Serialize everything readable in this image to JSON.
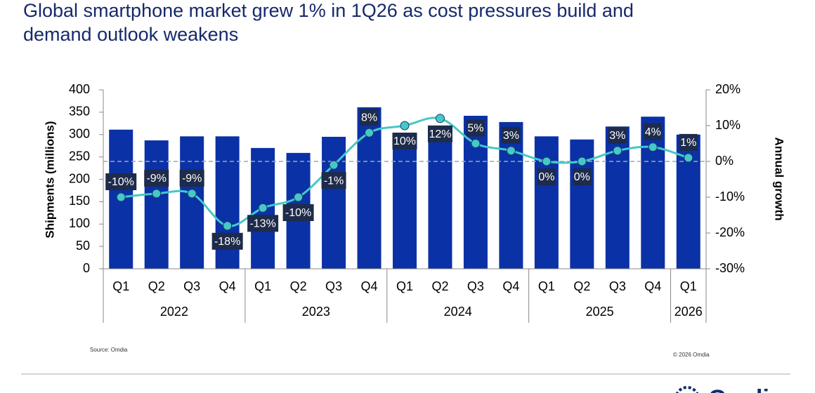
{
  "chart_data": {
    "type": "bar-line",
    "title_lines": [
      "Global smartphone market grew 1% in 1Q26 as cost pressures build and",
      "demand outlook weakens"
    ],
    "ylabel": "Shipments (millions)",
    "y2label": "Annual growth",
    "categories": [
      "Q1",
      "Q2",
      "Q3",
      "Q4",
      "Q1",
      "Q2",
      "Q3",
      "Q4",
      "Q1",
      "Q2",
      "Q3",
      "Q4",
      "Q1",
      "Q2",
      "Q3",
      "Q4",
      "Q1"
    ],
    "x_groups": [
      {
        "name": "2022",
        "count": 4
      },
      {
        "name": "2023",
        "count": 4
      },
      {
        "name": "2024",
        "count": 4
      },
      {
        "name": "2025",
        "count": 4
      },
      {
        "name": "2026",
        "count": 1
      }
    ],
    "series": [
      {
        "type": "bar",
        "color": "#0a31a6",
        "values": [
          311,
          287,
          296,
          296,
          270,
          259,
          295,
          361,
          296,
          296,
          342,
          328,
          296,
          289,
          318,
          340,
          300
        ]
      },
      {
        "type": "line",
        "axis": "y2",
        "color": "#45c8c6",
        "values": [
          -10,
          -9,
          -9,
          -18,
          -13,
          -10,
          -1,
          8,
          10,
          12,
          5,
          3,
          0,
          0,
          3,
          4,
          1
        ],
        "value_labels": [
          "-10%",
          "-9%",
          "-9%",
          "-18%",
          "-13%",
          "-10%",
          "-1%",
          "8%",
          "10%",
          "12%",
          "5%",
          "3%",
          "0%",
          "0%",
          "3%",
          "4%",
          "1%"
        ]
      }
    ],
    "ylim": [
      0,
      400
    ],
    "yticks": [
      0,
      50,
      100,
      150,
      200,
      250,
      300,
      350,
      400
    ],
    "y2lim": [
      -30,
      20
    ],
    "y2ticks": [
      {
        "value": -30,
        "label": "-30%"
      },
      {
        "value": -20,
        "label": "-20%"
      },
      {
        "value": -10,
        "label": "-10%"
      },
      {
        "value": 0,
        "label": "0%"
      },
      {
        "value": 10,
        "label": "10%"
      },
      {
        "value": 20,
        "label": "20%"
      }
    ],
    "reference_line": {
      "axis": "y2",
      "value": 0
    },
    "source": "Source: Omdia",
    "copyright": "© 2026 Omdia",
    "logo": "Omdia"
  }
}
